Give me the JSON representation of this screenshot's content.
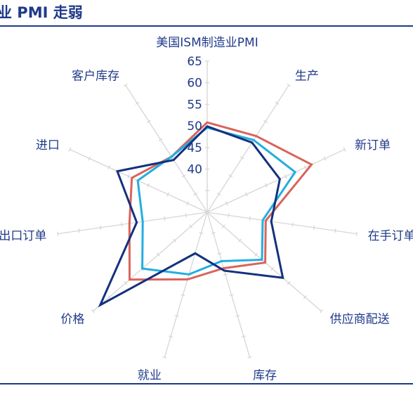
{
  "header": {
    "title": "业 PMI 走弱"
  },
  "chart_data": {
    "type": "radar",
    "title": "",
    "axes": [
      "美国ISM制造业PMI",
      "生产",
      "新订单",
      "在手订单",
      "供应商配送",
      "库存",
      "就业",
      "价格",
      "出口订单",
      "进口",
      "客户库存"
    ],
    "rlim": [
      30,
      65
    ],
    "ticks": [
      40,
      45,
      50,
      55,
      60,
      65
    ],
    "grid": true,
    "colors": {
      "red": "#d9645a",
      "cyan": "#22aee0",
      "navy": "#14317e",
      "grid": "#d6d6d6",
      "text": "#1f3a8a"
    },
    "series": [
      {
        "color_key": "red",
        "values": [
          50.8,
          51.0,
          56.6,
          43.7,
          47.8,
          43.5,
          46.2,
          53.8,
          48.2,
          49.2,
          45.3
        ]
      },
      {
        "color_key": "cyan",
        "values": [
          49.6,
          49.9,
          52.4,
          43.0,
          46.8,
          41.8,
          45.0,
          49.9,
          45.1,
          47.7,
          45.3
        ]
      },
      {
        "color_key": "navy",
        "values": [
          49.9,
          49.2,
          48.5,
          45.0,
          53.2,
          44.1,
          39.9,
          62.8,
          46.5,
          52.9,
          44.4
        ]
      }
    ]
  }
}
